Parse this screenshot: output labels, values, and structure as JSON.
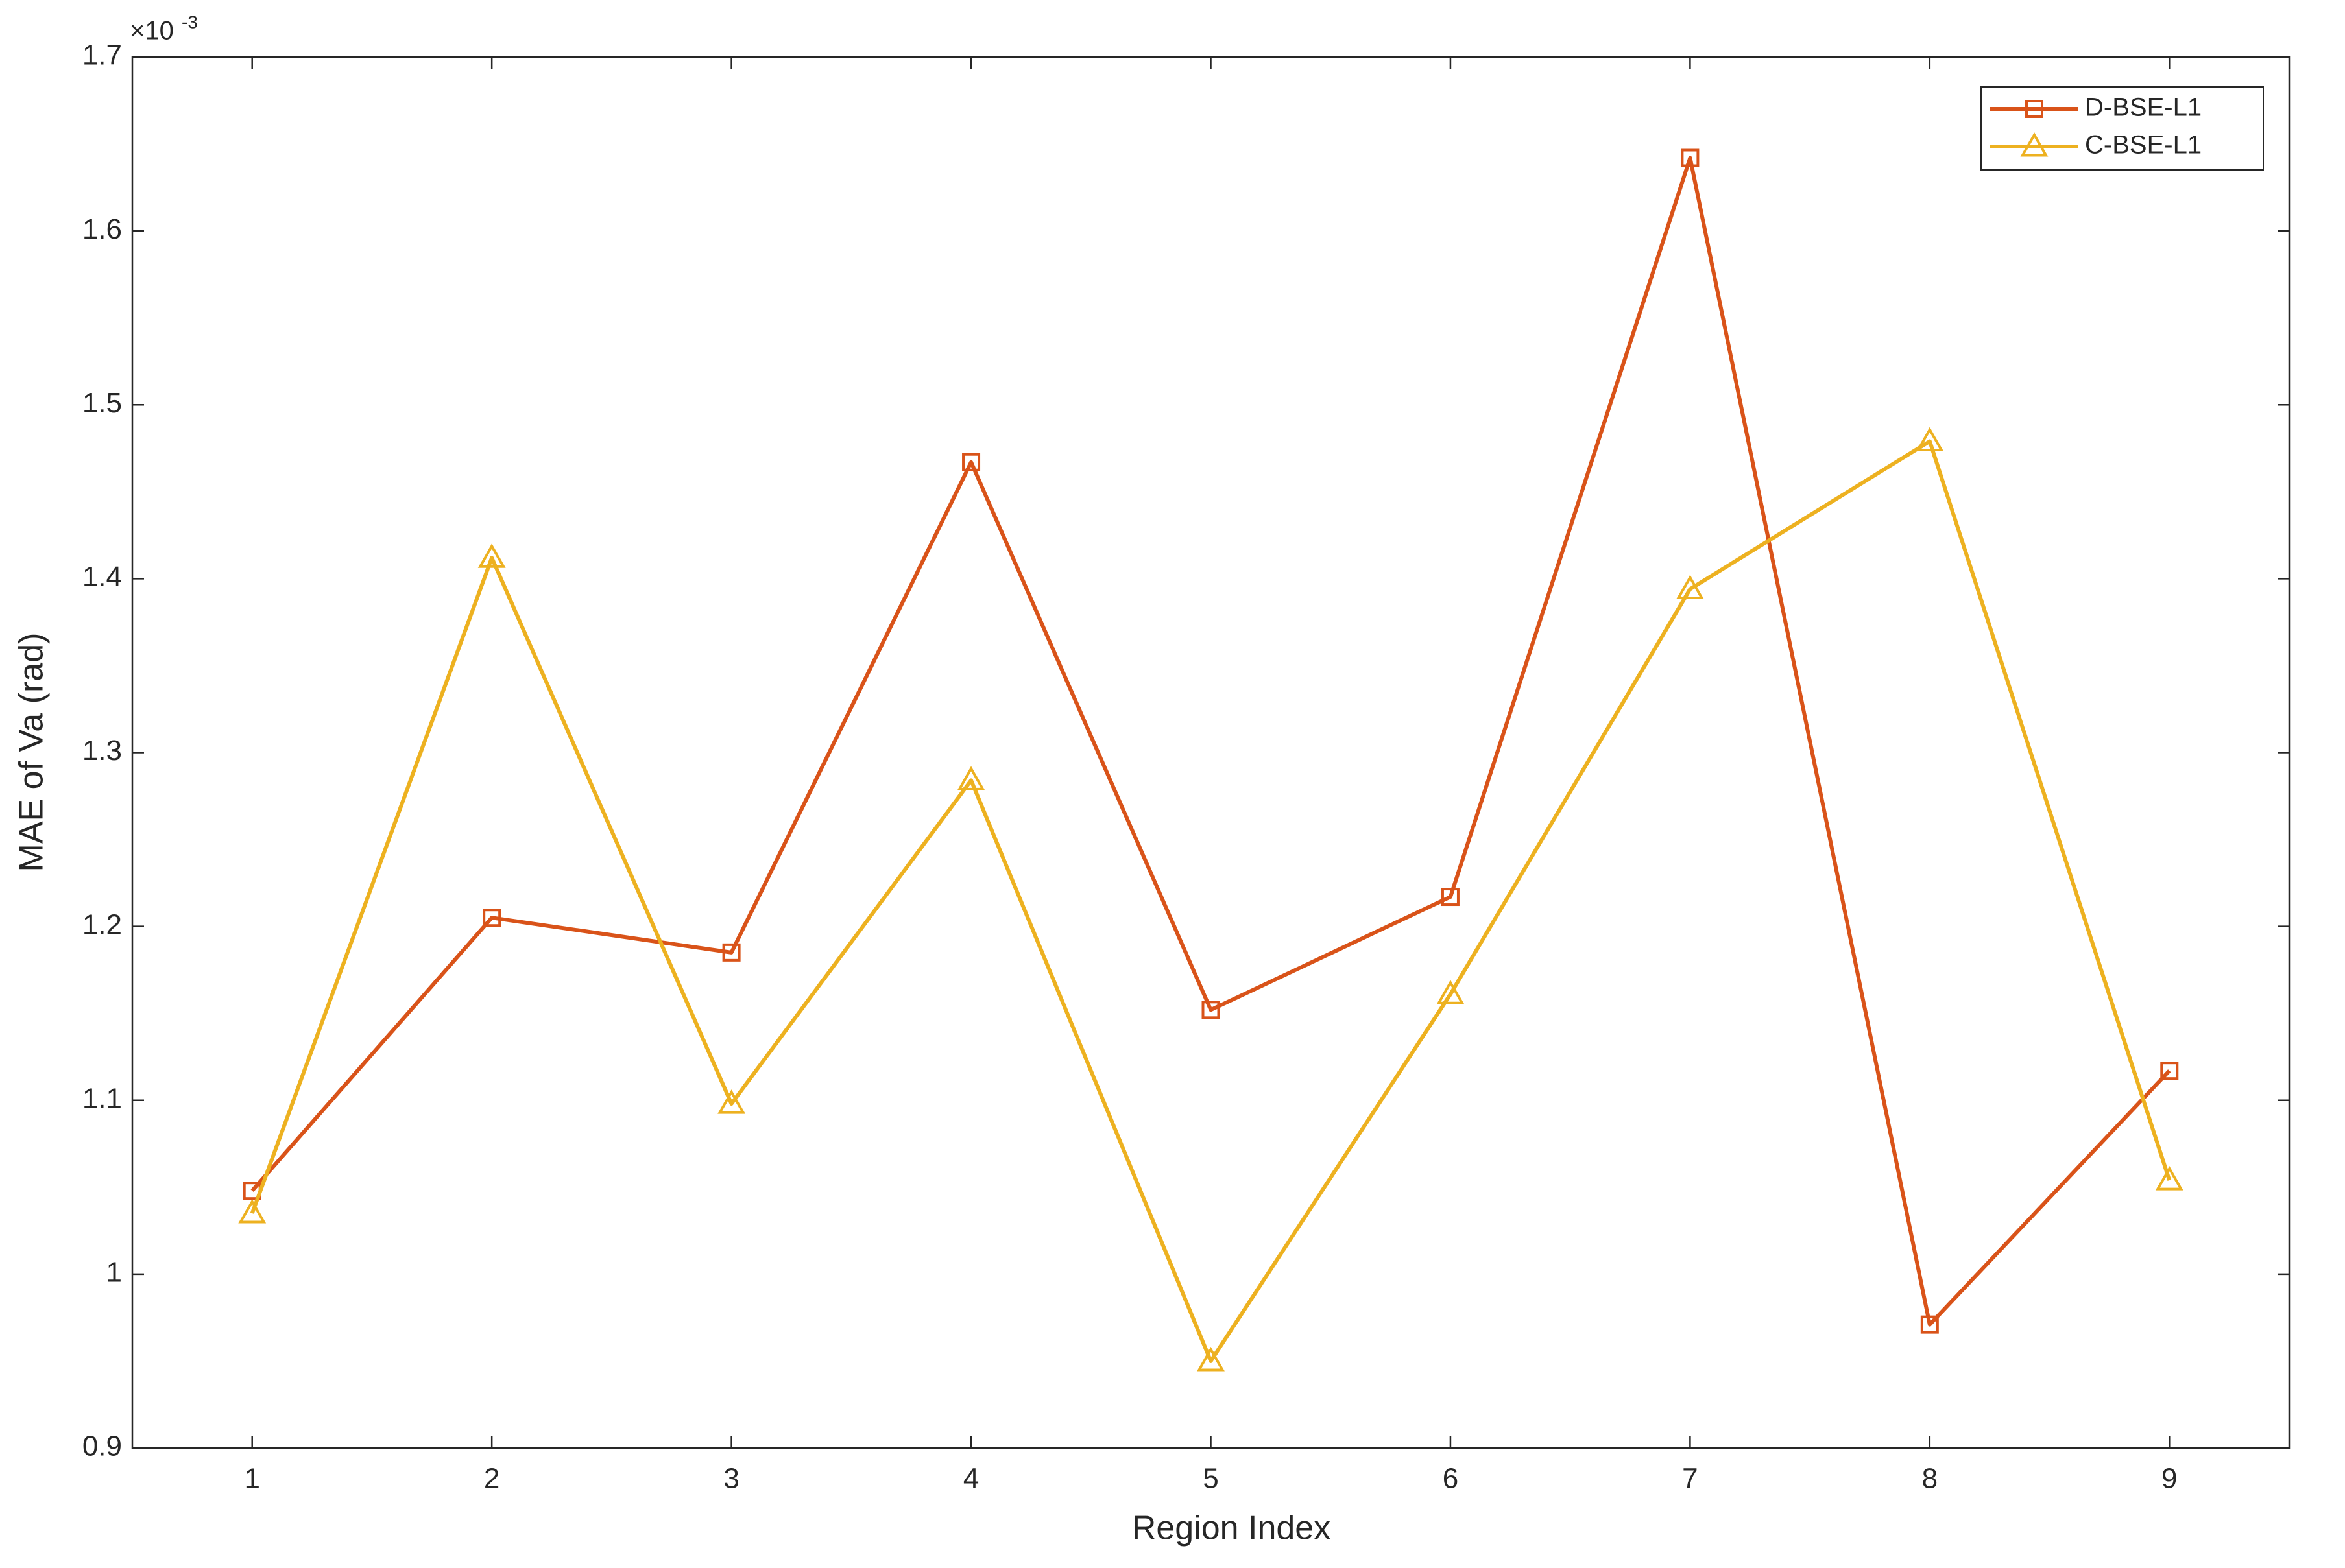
{
  "chart_data": {
    "type": "line",
    "x_label": "Region Index",
    "y_label": "MAE of Va (rad)",
    "y_exponent_base": "×10",
    "y_exponent": "-3",
    "x": [
      1,
      2,
      3,
      4,
      5,
      6,
      7,
      8,
      9
    ],
    "series": [
      {
        "name": "D-BSE-L1",
        "color": "#d95319",
        "marker": "square",
        "values": [
          1.048,
          1.205,
          1.185,
          1.467,
          1.152,
          1.217,
          1.642,
          0.971,
          1.117
        ]
      },
      {
        "name": "C-BSE-L1",
        "color": "#edb120",
        "marker": "triangle",
        "values": [
          1.035,
          1.412,
          1.098,
          1.284,
          0.95,
          1.161,
          1.394,
          1.479,
          1.054
        ]
      }
    ],
    "xlim": [
      0.5,
      9.5
    ],
    "xticks": [
      1,
      2,
      3,
      4,
      5,
      6,
      7,
      8,
      9
    ],
    "ylim": [
      0.9,
      1.7
    ],
    "yticks": [
      0.9,
      1,
      1.1,
      1.2,
      1.3,
      1.4,
      1.5,
      1.6,
      1.7
    ],
    "grid": false,
    "legend": "northeast"
  }
}
